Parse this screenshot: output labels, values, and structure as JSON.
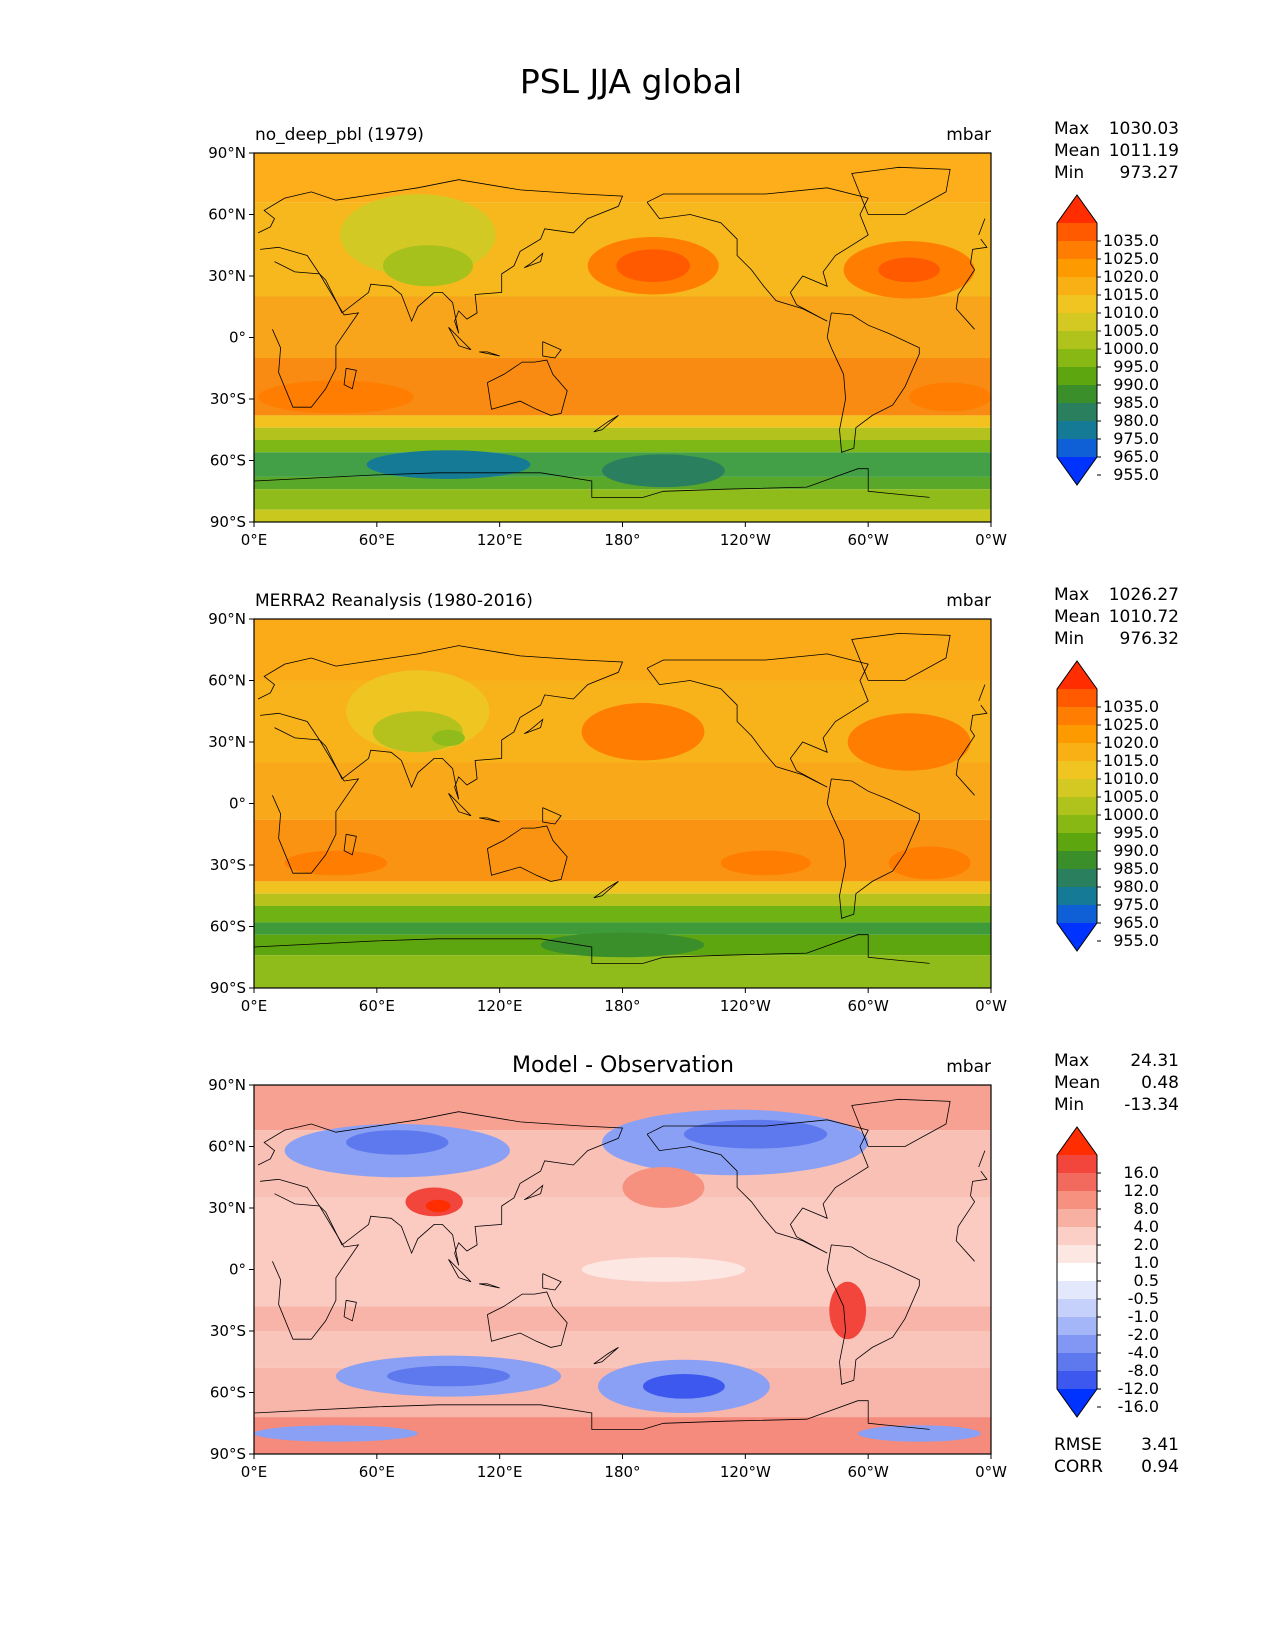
{
  "figure": {
    "title": "PSL JJA global",
    "lat_ticks": [
      "90°N",
      "60°N",
      "30°N",
      "0°",
      "30°S",
      "60°S",
      "90°S"
    ],
    "lon_ticks": [
      "0°E",
      "60°E",
      "120°E",
      "180°",
      "120°W",
      "60°W",
      "0°W"
    ],
    "stat_labels": {
      "max": "Max",
      "mean": "Mean",
      "min": "Min",
      "rmse": "RMSE",
      "corr": "CORR"
    }
  },
  "chart_data": [
    {
      "type": "heatmap",
      "title": "no_deep_pbl (1979)",
      "units": "mbar",
      "stats": {
        "max": "1030.03",
        "mean": "1011.19",
        "min": "973.27"
      },
      "colorbar_labels": [
        "1035.0",
        "1025.0",
        "1020.0",
        "1015.0",
        "1010.0",
        "1005.0",
        "1000.0",
        "995.0",
        "990.0",
        "985.0",
        "980.0",
        "975.0",
        "965.0",
        "955.0"
      ],
      "colorbar_colors": [
        "#ff2d00",
        "#ff5a00",
        "#ff7d00",
        "#fd9a00",
        "#f9b015",
        "#f1c521",
        "#d4c922",
        "#b0c21c",
        "#88b813",
        "#5ea60f",
        "#3a8f2a",
        "#2a7f5e",
        "#157a96",
        "#0f5fd6",
        "#0033ff"
      ],
      "fill_bands": [
        {
          "lat_from": 90,
          "lat_to": 66,
          "color": "#fdae1a"
        },
        {
          "lat_from": 66,
          "lat_to": 20,
          "color": "#f6b81c"
        },
        {
          "lat_from": 20,
          "lat_to": -10,
          "color": "#f8a51b"
        },
        {
          "lat_from": -10,
          "lat_to": -38,
          "color": "#f98b12"
        },
        {
          "lat_from": -38,
          "lat_to": -44,
          "color": "#f4c21f"
        },
        {
          "lat_from": -44,
          "lat_to": -50,
          "color": "#b3c21d"
        },
        {
          "lat_from": -50,
          "lat_to": -56,
          "color": "#7eb817"
        },
        {
          "lat_from": -56,
          "lat_to": -68,
          "color": "#43a046"
        },
        {
          "lat_from": -68,
          "lat_to": -74,
          "color": "#5aa82a"
        },
        {
          "lat_from": -74,
          "lat_to": -84,
          "color": "#8fbc1a"
        },
        {
          "lat_from": -84,
          "lat_to": -90,
          "color": "#c8c81f"
        }
      ],
      "features": [
        {
          "lon": 80,
          "lat": 50,
          "rx": 38,
          "ry": 20,
          "color": "#d3c924"
        },
        {
          "lon": 85,
          "lat": 35,
          "rx": 22,
          "ry": 10,
          "color": "#a7c11c"
        },
        {
          "lon": 195,
          "lat": 35,
          "rx": 32,
          "ry": 14,
          "color": "#ff7d00"
        },
        {
          "lon": 195,
          "lat": 35,
          "rx": 18,
          "ry": 8,
          "color": "#ff5a00"
        },
        {
          "lon": 320,
          "lat": 33,
          "rx": 32,
          "ry": 14,
          "color": "#ff7d00"
        },
        {
          "lon": 320,
          "lat": 33,
          "rx": 15,
          "ry": 6,
          "color": "#ff5a00"
        },
        {
          "lon": 40,
          "lat": -29,
          "rx": 38,
          "ry": 8,
          "color": "#ff7d00"
        },
        {
          "lon": 340,
          "lat": -29,
          "rx": 20,
          "ry": 7,
          "color": "#ff7d00"
        },
        {
          "lon": 95,
          "lat": -62,
          "rx": 40,
          "ry": 7,
          "color": "#157a96"
        },
        {
          "lon": 200,
          "lat": -65,
          "rx": 30,
          "ry": 8,
          "color": "#2a7f5e"
        }
      ]
    },
    {
      "type": "heatmap",
      "title": "MERRA2 Reanalysis (1980-2016)",
      "units": "mbar",
      "stats": {
        "max": "1026.27",
        "mean": "1010.72",
        "min": "976.32"
      },
      "colorbar_labels": [
        "1035.0",
        "1025.0",
        "1020.0",
        "1015.0",
        "1010.0",
        "1005.0",
        "1000.0",
        "995.0",
        "990.0",
        "985.0",
        "980.0",
        "975.0",
        "965.0",
        "955.0"
      ],
      "colorbar_colors": [
        "#ff2d00",
        "#ff5a00",
        "#ff7d00",
        "#fd9a00",
        "#f9b015",
        "#f1c521",
        "#d4c922",
        "#b0c21c",
        "#88b813",
        "#5ea60f",
        "#3a8f2a",
        "#2a7f5e",
        "#157a96",
        "#0f5fd6",
        "#0033ff"
      ],
      "fill_bands": [
        {
          "lat_from": 90,
          "lat_to": 60,
          "color": "#fbaa18"
        },
        {
          "lat_from": 60,
          "lat_to": 20,
          "color": "#f8b21a"
        },
        {
          "lat_from": 20,
          "lat_to": -8,
          "color": "#f9a81a"
        },
        {
          "lat_from": -8,
          "lat_to": -38,
          "color": "#fa9312"
        },
        {
          "lat_from": -38,
          "lat_to": -44,
          "color": "#f0c321"
        },
        {
          "lat_from": -44,
          "lat_to": -50,
          "color": "#b8c21d"
        },
        {
          "lat_from": -50,
          "lat_to": -58,
          "color": "#6fb214"
        },
        {
          "lat_from": -58,
          "lat_to": -64,
          "color": "#3f9a3a"
        },
        {
          "lat_from": -64,
          "lat_to": -74,
          "color": "#5ea60f"
        },
        {
          "lat_from": -74,
          "lat_to": -90,
          "color": "#8fbc1a"
        }
      ],
      "features": [
        {
          "lon": 80,
          "lat": 45,
          "rx": 35,
          "ry": 20,
          "color": "#efc522"
        },
        {
          "lon": 80,
          "lat": 35,
          "rx": 22,
          "ry": 10,
          "color": "#b5c21d"
        },
        {
          "lon": 95,
          "lat": 32,
          "rx": 8,
          "ry": 4,
          "color": "#8fbc1a"
        },
        {
          "lon": 190,
          "lat": 35,
          "rx": 30,
          "ry": 14,
          "color": "#ff7d00"
        },
        {
          "lon": 320,
          "lat": 30,
          "rx": 30,
          "ry": 14,
          "color": "#ff7d00"
        },
        {
          "lon": 40,
          "lat": -29,
          "rx": 25,
          "ry": 6,
          "color": "#ff7d00"
        },
        {
          "lon": 250,
          "lat": -29,
          "rx": 22,
          "ry": 6,
          "color": "#ff7d00"
        },
        {
          "lon": 330,
          "lat": -29,
          "rx": 20,
          "ry": 8,
          "color": "#ff7d00"
        },
        {
          "lon": 180,
          "lat": -69,
          "rx": 40,
          "ry": 6,
          "color": "#3a8f2a"
        }
      ]
    },
    {
      "type": "heatmap",
      "title": "Model - Observation",
      "units": "mbar",
      "stats": {
        "max": "24.31",
        "mean": "0.48",
        "min": "-13.34",
        "rmse": "3.41",
        "corr": "0.94"
      },
      "colorbar_labels": [
        "16.0",
        "12.0",
        "8.0",
        "4.0",
        "2.0",
        "1.0",
        "0.5",
        "-0.5",
        "-1.0",
        "-2.0",
        "-4.0",
        "-8.0",
        "-12.0",
        "-16.0"
      ],
      "colorbar_colors": [
        "#ff2d00",
        "#f2463c",
        "#f26a5e",
        "#f6907f",
        "#f8b0a2",
        "#fbcec6",
        "#fde7e3",
        "#ffffff",
        "#e3e8fd",
        "#c5d0fb",
        "#a4b6f8",
        "#8297f3",
        "#5e78ee",
        "#3c58ee",
        "#0033ff"
      ],
      "fill_bands": [
        {
          "lat_from": 90,
          "lat_to": 68,
          "color": "#f7a193"
        },
        {
          "lat_from": 68,
          "lat_to": 35,
          "color": "#f9c0b5"
        },
        {
          "lat_from": 35,
          "lat_to": -18,
          "color": "#fbcac1"
        },
        {
          "lat_from": -18,
          "lat_to": -30,
          "color": "#f8b4a8"
        },
        {
          "lat_from": -30,
          "lat_to": -48,
          "color": "#f9c4ba"
        },
        {
          "lat_from": -48,
          "lat_to": -72,
          "color": "#f8b6aa"
        },
        {
          "lat_from": -72,
          "lat_to": -90,
          "color": "#f58b7c"
        }
      ],
      "features": [
        {
          "lon": 70,
          "lat": 58,
          "rx": 55,
          "ry": 13,
          "color": "#8aa0f4"
        },
        {
          "lon": 70,
          "lat": 62,
          "rx": 25,
          "ry": 6,
          "color": "#5e78ee"
        },
        {
          "lon": 235,
          "lat": 62,
          "rx": 65,
          "ry": 16,
          "color": "#8aa0f4"
        },
        {
          "lon": 245,
          "lat": 66,
          "rx": 35,
          "ry": 7,
          "color": "#5e78ee"
        },
        {
          "lon": 88,
          "lat": 33,
          "rx": 14,
          "ry": 7,
          "color": "#f2463c"
        },
        {
          "lon": 90,
          "lat": 31,
          "rx": 6,
          "ry": 3,
          "color": "#ff2d00"
        },
        {
          "lon": 200,
          "lat": 40,
          "rx": 20,
          "ry": 10,
          "color": "#f6907f"
        },
        {
          "lon": 290,
          "lat": -20,
          "rx": 9,
          "ry": 14,
          "color": "#f2463c"
        },
        {
          "lon": 200,
          "lat": 0,
          "rx": 40,
          "ry": 6,
          "color": "#fde7e3"
        },
        {
          "lon": 95,
          "lat": -52,
          "rx": 55,
          "ry": 10,
          "color": "#8aa0f4"
        },
        {
          "lon": 95,
          "lat": -52,
          "rx": 30,
          "ry": 5,
          "color": "#5e78ee"
        },
        {
          "lon": 210,
          "lat": -57,
          "rx": 42,
          "ry": 13,
          "color": "#8aa0f4"
        },
        {
          "lon": 210,
          "lat": -57,
          "rx": 20,
          "ry": 6,
          "color": "#3c58ee"
        },
        {
          "lon": 40,
          "lat": -80,
          "rx": 40,
          "ry": 4,
          "color": "#8aa0f4"
        },
        {
          "lon": 325,
          "lat": -80,
          "rx": 30,
          "ry": 4,
          "color": "#8aa0f4"
        }
      ]
    }
  ]
}
